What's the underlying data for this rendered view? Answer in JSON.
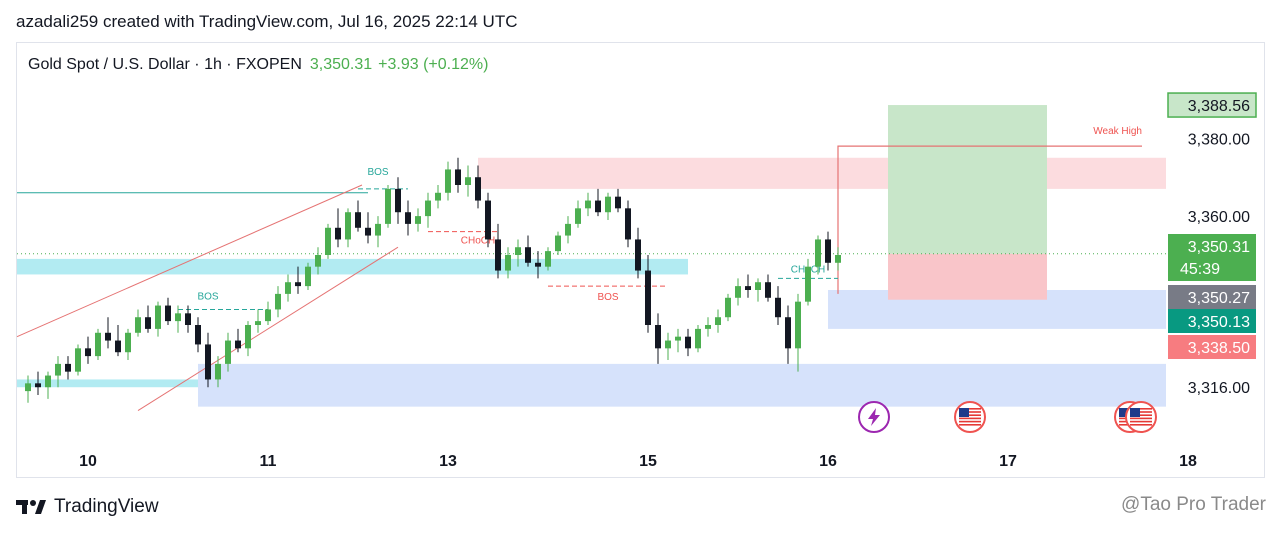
{
  "credit": "azadali259 created with TradingView.com, Jul 16, 2025 22:14 UTC",
  "header": {
    "symbol": "Gold Spot / U.S. Dollar · 1h · FXOPEN",
    "price": "3,350.31",
    "change": "+3.93 (+0.12%)"
  },
  "footer": {
    "brand": "TradingView",
    "watermark": "@Tao Pro Trader"
  },
  "colors": {
    "up": "#4caf50",
    "down": "#131722",
    "supply": "#fcdcdf",
    "demand": "#d6e2fb",
    "cyan_zone": "#b2ebf2",
    "target": "#c8e6c9",
    "stop": "#f9c5c9",
    "red_line": "#e57373"
  },
  "chart_data": {
    "type": "candlestick",
    "symbol": "XAUUSD",
    "timeframe": "1h",
    "ylim": [
      3305,
      3395
    ],
    "x_ticks": [
      {
        "label": "10",
        "index": 6
      },
      {
        "label": "11",
        "index": 24
      },
      {
        "label": "13",
        "index": 42
      },
      {
        "label": "15",
        "index": 62
      },
      {
        "label": "16",
        "index": 80
      },
      {
        "label": "17",
        "index": 98
      },
      {
        "label": "18",
        "index": 116
      }
    ],
    "y_ticks": [
      {
        "label": "3,380.00",
        "value": 3380
      },
      {
        "label": "3,360.00",
        "value": 3360
      },
      {
        "label": "3,316.00",
        "value": 3316
      }
    ],
    "price_labels": [
      {
        "label": "3,388.56",
        "value": 3388.56,
        "color": "#4caf50",
        "outline": true
      },
      {
        "label": "3,350.31",
        "sub": "45:39",
        "value": 3350.31,
        "color": "#4caf50"
      },
      {
        "label": "3,350.27",
        "value": 3350.27,
        "color": "#787b86"
      },
      {
        "label": "3,350.13",
        "value": 3350.13,
        "color": "#089981"
      },
      {
        "label": "3,338.50",
        "value": 3338.5,
        "color": "#f77c80"
      }
    ],
    "annotations": [
      {
        "text": "BOS",
        "color": "#26a69a"
      },
      {
        "text": "BOS",
        "color": "#26a69a"
      },
      {
        "text": "CHoCH",
        "color": "#ef5350"
      },
      {
        "text": "BOS",
        "color": "#ef5350"
      },
      {
        "text": "CHoCH",
        "color": "#26a69a"
      },
      {
        "text": "Weak High",
        "color": "#ef5350"
      }
    ],
    "ohlc": [
      [
        3315,
        3319,
        3312,
        3317
      ],
      [
        3317,
        3320,
        3314,
        3316
      ],
      [
        3316,
        3320,
        3313,
        3319
      ],
      [
        3319,
        3324,
        3316,
        3322
      ],
      [
        3322,
        3324,
        3318,
        3320
      ],
      [
        3320,
        3327,
        3319,
        3326
      ],
      [
        3326,
        3329,
        3322,
        3324
      ],
      [
        3324,
        3331,
        3323,
        3330
      ],
      [
        3330,
        3334,
        3326,
        3328
      ],
      [
        3328,
        3332,
        3324,
        3325
      ],
      [
        3325,
        3331,
        3323,
        3330
      ],
      [
        3330,
        3336,
        3329,
        3334
      ],
      [
        3334,
        3337,
        3330,
        3331
      ],
      [
        3331,
        3338,
        3329,
        3337
      ],
      [
        3337,
        3339,
        3332,
        3333
      ],
      [
        3333,
        3337,
        3330,
        3335
      ],
      [
        3335,
        3337,
        3330,
        3332
      ],
      [
        3332,
        3334,
        3325,
        3327
      ],
      [
        3327,
        3330,
        3316,
        3318
      ],
      [
        3318,
        3324,
        3316,
        3322
      ],
      [
        3322,
        3330,
        3320,
        3328
      ],
      [
        3328,
        3331,
        3325,
        3326
      ],
      [
        3326,
        3333,
        3324,
        3332
      ],
      [
        3332,
        3336,
        3330,
        3333
      ],
      [
        3333,
        3338,
        3332,
        3336
      ],
      [
        3336,
        3342,
        3334,
        3340
      ],
      [
        3340,
        3345,
        3338,
        3343
      ],
      [
        3343,
        3347,
        3340,
        3342
      ],
      [
        3342,
        3348,
        3341,
        3347
      ],
      [
        3347,
        3352,
        3345,
        3350
      ],
      [
        3350,
        3358,
        3349,
        3357
      ],
      [
        3357,
        3362,
        3352,
        3354
      ],
      [
        3354,
        3362,
        3352,
        3361
      ],
      [
        3361,
        3364,
        3356,
        3357
      ],
      [
        3357,
        3361,
        3353,
        3355
      ],
      [
        3355,
        3360,
        3352,
        3358
      ],
      [
        3358,
        3368,
        3357,
        3367
      ],
      [
        3367,
        3370,
        3358,
        3361
      ],
      [
        3361,
        3364,
        3355,
        3358
      ],
      [
        3358,
        3362,
        3356,
        3360
      ],
      [
        3360,
        3366,
        3357,
        3364
      ],
      [
        3364,
        3368,
        3362,
        3366
      ],
      [
        3366,
        3374,
        3364,
        3372
      ],
      [
        3372,
        3375,
        3366,
        3368
      ],
      [
        3368,
        3373,
        3365,
        3370
      ],
      [
        3370,
        3373,
        3362,
        3364
      ],
      [
        3364,
        3366,
        3352,
        3354
      ],
      [
        3354,
        3358,
        3344,
        3346
      ],
      [
        3346,
        3352,
        3344,
        3350
      ],
      [
        3350,
        3354,
        3347,
        3352
      ],
      [
        3352,
        3355,
        3347,
        3348
      ],
      [
        3348,
        3351,
        3344,
        3347
      ],
      [
        3347,
        3352,
        3346,
        3351
      ],
      [
        3351,
        3356,
        3350,
        3355
      ],
      [
        3355,
        3360,
        3353,
        3358
      ],
      [
        3358,
        3364,
        3357,
        3362
      ],
      [
        3362,
        3366,
        3360,
        3364
      ],
      [
        3364,
        3367,
        3360,
        3361
      ],
      [
        3361,
        3366,
        3359,
        3365
      ],
      [
        3365,
        3367,
        3361,
        3362
      ],
      [
        3362,
        3364,
        3352,
        3354
      ],
      [
        3354,
        3357,
        3344,
        3346
      ],
      [
        3346,
        3350,
        3330,
        3332
      ],
      [
        3332,
        3335,
        3322,
        3326
      ],
      [
        3326,
        3330,
        3323,
        3328
      ],
      [
        3328,
        3331,
        3325,
        3329
      ],
      [
        3329,
        3331,
        3324,
        3326
      ],
      [
        3326,
        3332,
        3325,
        3331
      ],
      [
        3331,
        3334,
        3329,
        3332
      ],
      [
        3332,
        3336,
        3330,
        3334
      ],
      [
        3334,
        3340,
        3333,
        3339
      ],
      [
        3339,
        3344,
        3337,
        3342
      ],
      [
        3342,
        3345,
        3339,
        3341
      ],
      [
        3341,
        3344,
        3338,
        3343
      ],
      [
        3343,
        3345,
        3338,
        3339
      ],
      [
        3339,
        3342,
        3332,
        3334
      ],
      [
        3334,
        3337,
        3322,
        3326
      ],
      [
        3326,
        3340,
        3320,
        3338
      ],
      [
        3338,
        3349,
        3337,
        3347
      ],
      [
        3347,
        3355,
        3345,
        3354
      ],
      [
        3354,
        3356,
        3346,
        3348
      ],
      [
        3348,
        3352,
        3346,
        3350
      ]
    ]
  }
}
